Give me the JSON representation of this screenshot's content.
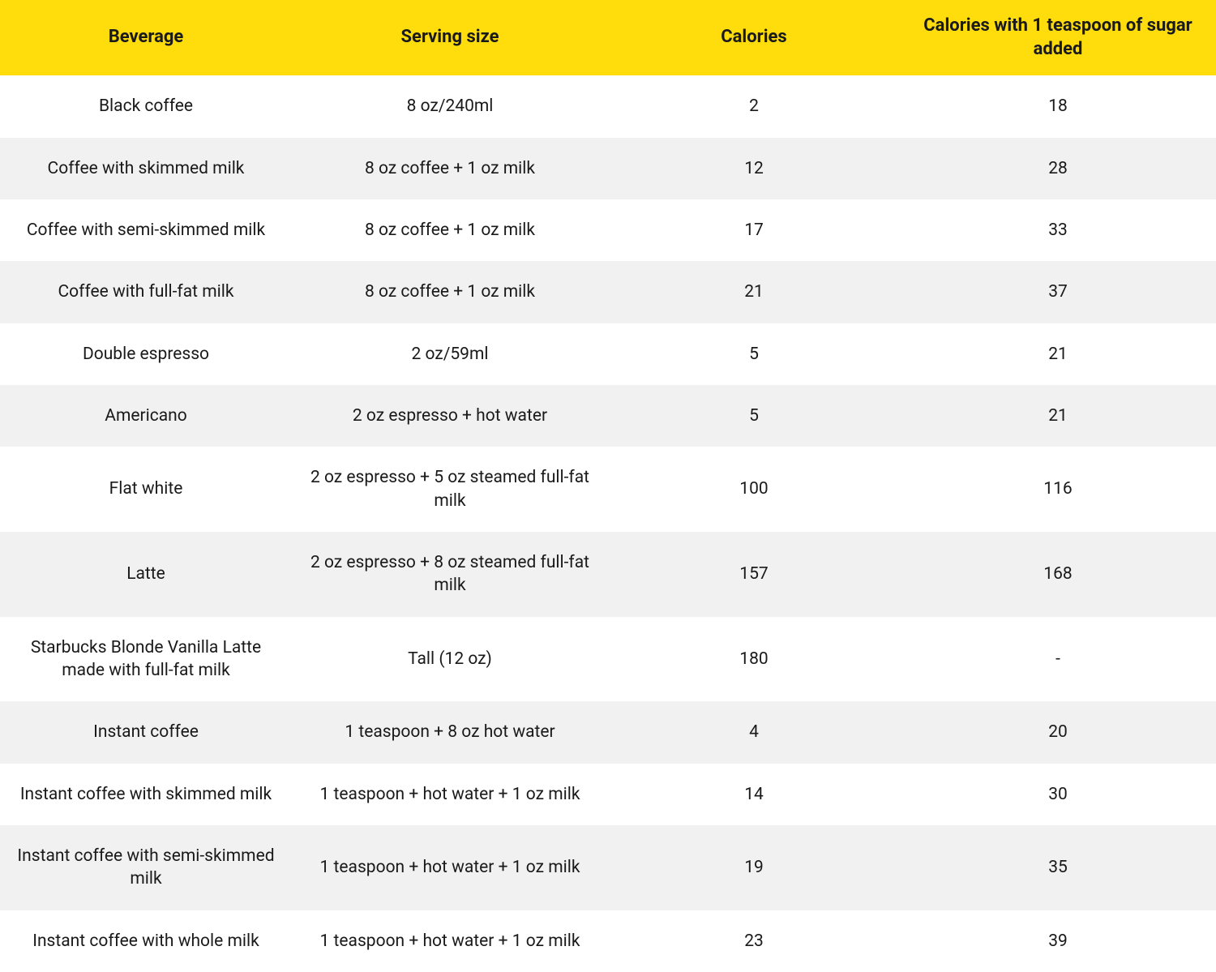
{
  "table": {
    "header_bg_color": "#ffdd0d",
    "row_odd_bg_color": "#ffffff",
    "row_even_bg_color": "#f1f1f1",
    "text_color": "#1a1a1a",
    "header_font_size": 22,
    "body_font_size": 21,
    "columns": [
      "Beverage",
      "Serving size",
      "Calories",
      "Calories with 1 teaspoon of sugar added"
    ],
    "rows": [
      [
        "Black coffee",
        "8 oz/240ml",
        "2",
        "18"
      ],
      [
        "Coffee with skimmed milk",
        "8 oz coffee + 1 oz milk",
        "12",
        "28"
      ],
      [
        "Coffee with semi-skimmed milk",
        "8 oz coffee + 1 oz milk",
        "17",
        "33"
      ],
      [
        "Coffee with full-fat milk",
        "8 oz coffee + 1 oz milk",
        "21",
        "37"
      ],
      [
        "Double espresso",
        "2 oz/59ml",
        "5",
        "21"
      ],
      [
        "Americano",
        "2 oz espresso + hot water",
        "5",
        "21"
      ],
      [
        "Flat white",
        "2 oz espresso + 5 oz steamed full-fat milk",
        "100",
        "116"
      ],
      [
        "Latte",
        "2 oz espresso + 8 oz steamed full-fat milk",
        "157",
        "168"
      ],
      [
        "Starbucks Blonde Vanilla Latte made with full-fat milk",
        "Tall (12 oz)",
        "180",
        "-"
      ],
      [
        "Instant coffee",
        "1 teaspoon + 8 oz hot water",
        "4",
        "20"
      ],
      [
        "Instant coffee with skimmed milk",
        "1 teaspoon + hot water + 1 oz milk",
        "14",
        "30"
      ],
      [
        "Instant coffee with semi-skimmed milk",
        "1 teaspoon + hot water + 1 oz milk",
        "19",
        "35"
      ],
      [
        "Instant coffee with whole milk",
        "1 teaspoon + hot water + 1 oz milk",
        "23",
        "39"
      ]
    ]
  }
}
